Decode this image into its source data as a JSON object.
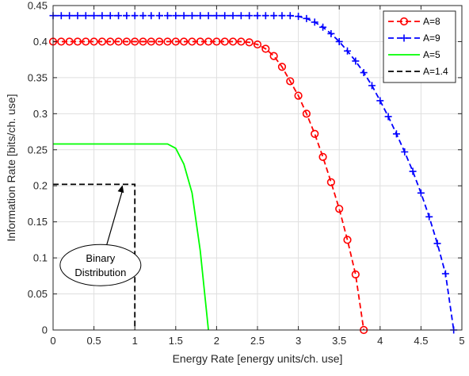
{
  "chart_data": {
    "type": "line",
    "xlabel": "Energy Rate [energy units/ch. use]",
    "ylabel": "Information Rate [bits/ch. use]",
    "xlim": [
      0,
      5
    ],
    "ylim": [
      0,
      0.45
    ],
    "xticks": [
      0,
      0.5,
      1,
      1.5,
      2,
      2.5,
      3,
      3.5,
      4,
      4.5,
      5
    ],
    "yticks": [
      0,
      0.05,
      0.1,
      0.15,
      0.2,
      0.25,
      0.3,
      0.35,
      0.4,
      0.45
    ],
    "xtick_labels": [
      "0",
      "0.5",
      "1",
      "1.5",
      "2",
      "2.5",
      "3",
      "3.5",
      "4",
      "4.5",
      "5"
    ],
    "ytick_labels": [
      "0",
      "0.05",
      "0.1",
      "0.15",
      "0.2",
      "0.25",
      "0.3",
      "0.35",
      "0.4",
      "0.45"
    ],
    "grid": true,
    "legend_position": "top-right",
    "series": [
      {
        "name": "A=8",
        "color": "#ff0000",
        "line_style": "dashed",
        "marker": "circle",
        "x": [
          0,
          0.1,
          0.2,
          0.3,
          0.4,
          0.5,
          0.6,
          0.7,
          0.8,
          0.9,
          1.0,
          1.1,
          1.2,
          1.3,
          1.4,
          1.5,
          1.6,
          1.7,
          1.8,
          1.9,
          2.0,
          2.1,
          2.2,
          2.3,
          2.4,
          2.5,
          2.6,
          2.7,
          2.8,
          2.9,
          3.0,
          3.1,
          3.2,
          3.3,
          3.4,
          3.5,
          3.6,
          3.7,
          3.8
        ],
        "y": [
          0.4,
          0.4,
          0.4,
          0.4,
          0.4,
          0.4,
          0.4,
          0.4,
          0.4,
          0.4,
          0.4,
          0.4,
          0.4,
          0.4,
          0.4,
          0.4,
          0.4,
          0.4,
          0.4,
          0.4,
          0.4,
          0.4,
          0.4,
          0.4,
          0.399,
          0.396,
          0.39,
          0.38,
          0.365,
          0.345,
          0.325,
          0.3,
          0.272,
          0.24,
          0.205,
          0.168,
          0.125,
          0.077,
          0
        ]
      },
      {
        "name": "A=9",
        "color": "#0000ff",
        "line_style": "dashed",
        "marker": "plus",
        "x": [
          0,
          0.1,
          0.2,
          0.3,
          0.4,
          0.5,
          0.6,
          0.7,
          0.8,
          0.9,
          1.0,
          1.1,
          1.2,
          1.3,
          1.4,
          1.5,
          1.6,
          1.7,
          1.8,
          1.9,
          2.0,
          2.1,
          2.2,
          2.3,
          2.4,
          2.5,
          2.6,
          2.7,
          2.8,
          2.9,
          3.0,
          3.1,
          3.2,
          3.3,
          3.4,
          3.5,
          3.6,
          3.7,
          3.8,
          3.9,
          4.0,
          4.1,
          4.2,
          4.3,
          4.4,
          4.5,
          4.6,
          4.7,
          4.8,
          4.9
        ],
        "y": [
          0.436,
          0.436,
          0.436,
          0.436,
          0.436,
          0.436,
          0.436,
          0.436,
          0.436,
          0.436,
          0.436,
          0.436,
          0.436,
          0.436,
          0.436,
          0.436,
          0.436,
          0.436,
          0.436,
          0.436,
          0.436,
          0.436,
          0.436,
          0.436,
          0.436,
          0.436,
          0.436,
          0.436,
          0.436,
          0.436,
          0.435,
          0.432,
          0.427,
          0.42,
          0.411,
          0.4,
          0.387,
          0.373,
          0.357,
          0.339,
          0.318,
          0.296,
          0.272,
          0.247,
          0.22,
          0.19,
          0.157,
          0.12,
          0.078,
          0
        ]
      },
      {
        "name": "A=5",
        "color": "#00ff00",
        "line_style": "solid",
        "marker": "none",
        "x": [
          0,
          0.5,
          1.0,
          1.4,
          1.5,
          1.6,
          1.7,
          1.8,
          1.9
        ],
        "y": [
          0.258,
          0.258,
          0.258,
          0.258,
          0.252,
          0.23,
          0.19,
          0.11,
          0
        ]
      },
      {
        "name": "A=1.4",
        "color": "#000000",
        "line_style": "dashed",
        "marker": "none",
        "x": [
          0,
          1,
          1
        ],
        "y": [
          0.202,
          0.202,
          0
        ]
      }
    ],
    "annotations": [
      {
        "text_lines": [
          "Binary",
          "Distribution"
        ],
        "arrow_to": [
          0.85,
          0.202
        ],
        "ellipse_center": [
          0.58,
          0.09
        ]
      }
    ]
  }
}
